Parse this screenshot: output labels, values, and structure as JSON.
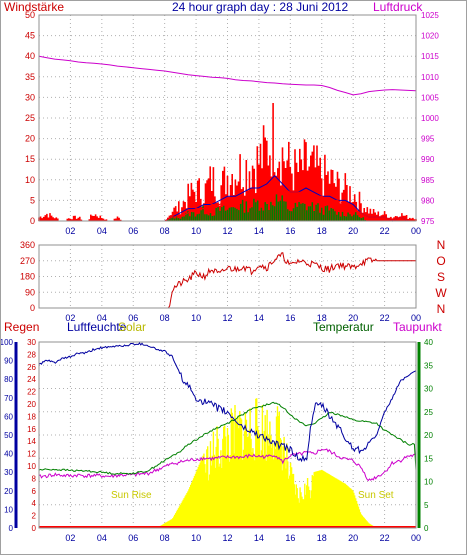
{
  "header": {
    "title": "24 hour graph day : 28 Juni 2012",
    "left_label": "Windstärke",
    "right_label": "Luftdruck"
  },
  "bottom_labels": {
    "regen": "Regen",
    "luftfeuchte": "Luftfeuchte",
    "solar": "Solar",
    "temperatur": "Temperatur",
    "taupunkt": "Taupunkt",
    "sun_rise": "Sun Rise",
    "sun_set": "Sun Set"
  },
  "colors": {
    "wind": "#ff0000",
    "gust": "#ff0000",
    "wind_avg_green": "#008000",
    "wind_blue": "#0000c0",
    "pressure": "#cc00cc",
    "direction": "#cc0000",
    "humidity": "#0000a0",
    "temperature": "#008000",
    "dewpoint": "#cc00cc",
    "solar": "#ffff00",
    "rain": "#ff0000",
    "grid": "#b0b0b0"
  },
  "chart_data": [
    {
      "type": "line",
      "name": "wind_pressure",
      "x_ticks": [
        "02",
        "04",
        "06",
        "08",
        "10",
        "12",
        "14",
        "16",
        "18",
        "20",
        "22",
        "00"
      ],
      "y_left_ticks": [
        "0",
        "5",
        "10",
        "15",
        "20",
        "25",
        "30",
        "35",
        "40",
        "45",
        "50"
      ],
      "y_left_lim": [
        0,
        50
      ],
      "y_right_ticks": [
        "975",
        "980",
        "985",
        "990",
        "995",
        "1000",
        "1005",
        "1010",
        "1015",
        "1020",
        "1025"
      ],
      "y_right_lim": [
        975,
        1025
      ],
      "x_hours": [
        0,
        0.5,
        1,
        1.5,
        2,
        2.5,
        3,
        3.5,
        4,
        4.5,
        5,
        5.5,
        6,
        6.5,
        7,
        7.5,
        8,
        8.5,
        9,
        9.5,
        10,
        10.5,
        11,
        11.5,
        12,
        12.5,
        13,
        13.5,
        14,
        14.5,
        15,
        15.5,
        16,
        16.5,
        17,
        17.5,
        18,
        18.5,
        19,
        19.5,
        20,
        20.5,
        21,
        21.5,
        22,
        22.5,
        23,
        23.5,
        24
      ],
      "series": [
        {
          "role": "pressure",
          "axis": "right",
          "values": [
            1015,
            1014.6,
            1014.3,
            1014.1,
            1013.9,
            1013.6,
            1013.4,
            1013.3,
            1013.1,
            1012.9,
            1012.6,
            1012.4,
            1012.2,
            1012,
            1011.8,
            1011.6,
            1011.4,
            1011.1,
            1010.8,
            1010.5,
            1010.3,
            1010.1,
            1009.9,
            1009.8,
            1009.6,
            1009.3,
            1009.1,
            1009,
            1008.8,
            1008.6,
            1008.5,
            1008.3,
            1008.2,
            1008.1,
            1008,
            1008,
            1007.9,
            1007.4,
            1006.7,
            1006.2,
            1005.6,
            1005.9,
            1006.4,
            1006.6,
            1006.8,
            1006.9,
            1006.8,
            1006.7,
            1006.6
          ]
        },
        {
          "role": "gust",
          "axis": "left",
          "values": [
            1,
            2,
            1,
            0,
            1,
            1,
            0,
            2,
            1,
            0,
            1,
            0,
            0,
            0,
            0,
            0,
            0,
            3,
            4,
            7,
            9,
            8,
            12,
            9,
            13,
            14,
            15,
            16,
            17,
            20,
            25,
            19,
            15,
            14,
            16,
            15,
            13,
            12,
            10,
            9,
            8,
            5,
            3,
            2,
            2,
            1,
            2,
            1,
            1
          ]
        },
        {
          "role": "wind_blue",
          "axis": "left",
          "values": [
            0,
            0,
            0,
            0,
            0,
            0,
            0,
            0,
            0,
            0,
            0,
            0,
            0,
            0,
            0,
            0,
            0,
            1,
            2,
            3,
            3,
            4,
            4,
            5,
            6,
            6,
            7,
            8,
            8,
            9,
            11,
            9,
            7,
            7,
            8,
            7,
            6,
            6,
            5,
            5,
            4,
            2,
            1,
            1,
            1,
            0,
            1,
            0,
            0
          ]
        },
        {
          "role": "wind_avg_green",
          "axis": "left",
          "values": [
            0,
            0,
            0,
            0,
            0,
            0,
            0,
            0,
            0,
            0,
            0,
            0,
            0,
            0,
            0,
            0,
            0,
            1,
            1,
            2,
            2,
            3,
            2,
            3,
            3,
            4,
            4,
            4,
            5,
            4,
            6,
            5,
            3,
            4,
            4,
            4,
            3,
            3,
            2,
            2,
            2,
            1,
            0,
            0,
            0,
            0,
            0,
            0,
            0
          ]
        },
        {
          "role": "wind",
          "axis": "left",
          "values": [
            0,
            0,
            0,
            0,
            0,
            0,
            0,
            0,
            0,
            0,
            0,
            0,
            0,
            0,
            0,
            0,
            0,
            1,
            1,
            2,
            3,
            3,
            4,
            4,
            5,
            5,
            6,
            6,
            7,
            8,
            9,
            8,
            7,
            7,
            7,
            6,
            6,
            5,
            5,
            4,
            3,
            2,
            1,
            1,
            1,
            0,
            1,
            0,
            0
          ]
        }
      ]
    },
    {
      "type": "line",
      "name": "wind_direction",
      "y_ticks": [
        "0",
        "90",
        "180",
        "270",
        "360"
      ],
      "y_lim": [
        0,
        360
      ],
      "direction_labels": [
        "N",
        "W",
        "S",
        "O",
        "N"
      ],
      "x_hours": [
        0,
        0.5,
        1,
        1.5,
        2,
        2.5,
        3,
        3.5,
        4,
        4.5,
        5,
        5.5,
        6,
        6.5,
        7,
        7.5,
        8,
        8.25,
        8.5,
        9,
        9.5,
        10,
        10.5,
        11,
        11.5,
        12,
        12.5,
        13,
        13.5,
        14,
        14.5,
        15,
        15.5,
        16,
        16.5,
        17,
        17.5,
        18,
        18.5,
        19,
        19.5,
        20,
        20.5,
        21,
        21.5,
        22,
        22.5,
        23,
        23.5,
        24
      ],
      "series": [
        {
          "role": "direction",
          "values": [
            0,
            0,
            0,
            0,
            0,
            0,
            0,
            0,
            0,
            0,
            0,
            0,
            0,
            0,
            0,
            0,
            0,
            0,
            110,
            140,
            160,
            200,
            180,
            220,
            190,
            230,
            220,
            240,
            210,
            250,
            230,
            280,
            300,
            240,
            270,
            260,
            250,
            230,
            220,
            250,
            240,
            230,
            260,
            270,
            270,
            270,
            270,
            270,
            270,
            270
          ]
        }
      ]
    },
    {
      "type": "line",
      "name": "humidity_temperature",
      "y_rain_ticks": [
        "0",
        "10",
        "20",
        "30",
        "40",
        "50",
        "60",
        "70",
        "80",
        "90",
        "100"
      ],
      "y_humidity_ticks": [
        "0",
        "2",
        "4",
        "6",
        "8",
        "10",
        "12",
        "14",
        "16",
        "18",
        "20",
        "22",
        "24",
        "26",
        "28",
        "30"
      ],
      "y_temperature_ticks": [
        "0",
        "5",
        "10",
        "15",
        "20",
        "25",
        "30",
        "35",
        "40"
      ],
      "x_hours": [
        0,
        0.5,
        1,
        1.5,
        2,
        2.5,
        3,
        3.5,
        4,
        4.5,
        5,
        5.5,
        6,
        6.5,
        7,
        7.5,
        8,
        8.5,
        9,
        9.5,
        10,
        10.5,
        11,
        11.5,
        12,
        12.5,
        13,
        13.5,
        14,
        14.5,
        15,
        15.5,
        16,
        16.5,
        17,
        17.5,
        18,
        18.5,
        19,
        19.5,
        20,
        20.5,
        21,
        21.5,
        22,
        22.5,
        23,
        23.5,
        24
      ],
      "series": [
        {
          "role": "humidity",
          "axis": "0-100",
          "values": [
            88,
            90,
            89,
            91,
            92,
            94,
            94,
            96,
            97,
            97,
            98,
            98,
            99,
            99,
            98,
            96,
            95,
            92,
            82,
            76,
            70,
            68,
            66,
            64,
            62,
            58,
            54,
            52,
            50,
            48,
            45,
            44,
            42,
            38,
            36,
            65,
            66,
            60,
            55,
            48,
            43,
            42,
            46,
            50,
            62,
            70,
            79,
            82,
            84
          ]
        },
        {
          "role": "temperature",
          "axis": "0-40",
          "values": [
            12.5,
            12.6,
            12.6,
            12.5,
            12.4,
            12.3,
            12.3,
            12.1,
            12,
            11.8,
            11.7,
            11.7,
            11.8,
            12,
            12.4,
            13.5,
            14.5,
            15.5,
            16.5,
            18,
            19,
            20,
            21,
            21.8,
            22.5,
            23.5,
            24.5,
            25.5,
            26,
            26.5,
            27,
            26,
            24.5,
            23,
            22,
            22.5,
            23.5,
            24.8,
            24.5,
            24,
            23.2,
            23,
            22.8,
            22.5,
            21,
            20,
            19,
            18,
            18
          ]
        },
        {
          "role": "dewpoint",
          "axis": "0-40",
          "values": [
            11,
            11.2,
            11.5,
            11.3,
            11.2,
            11.4,
            11.2,
            11.3,
            11.2,
            11.1,
            11.3,
            11.4,
            11.4,
            11.6,
            11.8,
            12.5,
            13.2,
            13.8,
            14.2,
            14.5,
            14.8,
            15,
            14.9,
            15.1,
            15.2,
            15.3,
            15.2,
            15.6,
            15.4,
            15.3,
            15.8,
            14.2,
            15.6,
            15.8,
            16.2,
            15.9,
            17,
            16.5,
            15.5,
            14.8,
            14.5,
            13,
            10.2,
            11,
            12,
            14,
            14.5,
            15.5,
            15.6
          ]
        },
        {
          "role": "solar",
          "axis": "0-40",
          "values": [
            0,
            0,
            0,
            0,
            0,
            0,
            0,
            0,
            0,
            0,
            0,
            0,
            0,
            0,
            0,
            0,
            1,
            2,
            5,
            8,
            12,
            16,
            19,
            21,
            23,
            24.5,
            25.5,
            25.5,
            26,
            25,
            26.5,
            22,
            13,
            8,
            10,
            12,
            12.5,
            11.5,
            10.5,
            9.5,
            8,
            3,
            1,
            0,
            0,
            0,
            0,
            0,
            0
          ]
        },
        {
          "role": "rain",
          "axis": "0-100",
          "values": [
            0,
            0,
            0,
            0,
            0,
            0,
            0,
            0,
            0,
            0,
            0,
            0,
            0,
            0,
            0,
            0,
            0,
            0,
            0,
            0,
            0,
            0,
            0,
            0,
            0,
            0,
            0,
            0,
            0,
            0,
            0,
            0,
            0,
            0,
            0,
            0,
            0,
            0,
            0,
            0,
            0,
            0,
            0,
            0,
            0,
            0,
            0,
            0,
            0
          ]
        }
      ]
    }
  ]
}
